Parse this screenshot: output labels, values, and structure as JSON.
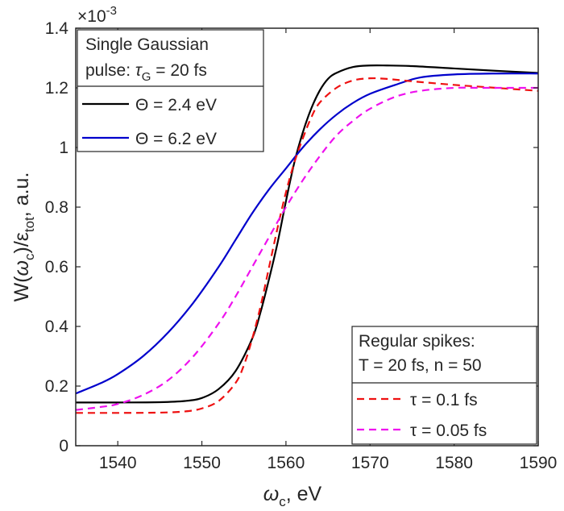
{
  "chart_data": {
    "type": "line",
    "xlim": [
      1535,
      1590
    ],
    "ylim": [
      0,
      1.4
    ],
    "x_ticks": [
      1540,
      1550,
      1560,
      1570,
      1580,
      1590
    ],
    "y_ticks": [
      0,
      0.2,
      0.4,
      0.6,
      0.8,
      1,
      1.2,
      1.4
    ],
    "x_tick_labels": [
      "1540",
      "1550",
      "1560",
      "1570",
      "1580",
      "1590"
    ],
    "y_tick_labels": [
      "0",
      "0.2",
      "0.4",
      "0.6",
      "0.8",
      "1",
      "1.2",
      "1.4"
    ],
    "exponent_label": "×10",
    "exponent_power": "-3",
    "xlabel": {
      "main": "ω",
      "sub": "c",
      "rest": ", eV"
    },
    "ylabel": {
      "p1": "W(",
      "omega": "ω",
      "sub_c": "c",
      "p2": ")/ε",
      "sub_tot": "tot",
      "p3": ", a.u."
    },
    "grid": false,
    "legend_top_left": {
      "title_line1": "Single Gaussian",
      "title_line2_prefix": "pulse: ",
      "title_line2_tau": "τ",
      "title_line2_sub": "G",
      "title_line2_suffix": " = 20 fs",
      "entries": [
        {
          "series_index": 0,
          "label": "Θ = 2.4 eV"
        },
        {
          "series_index": 1,
          "label": "Θ = 6.2 eV"
        }
      ]
    },
    "legend_bottom_right": {
      "title_line1": "Regular spikes:",
      "title_line2": "T = 20 fs, n = 50",
      "entries": [
        {
          "series_index": 2,
          "label": "τ = 0.1 fs"
        },
        {
          "series_index": 3,
          "label": "τ = 0.05 fs"
        }
      ]
    },
    "series": [
      {
        "color": "#000000",
        "dash": "solid",
        "x": [
          1535,
          1540,
          1545,
          1548,
          1550,
          1552,
          1554,
          1556,
          1557,
          1558,
          1559,
          1560,
          1561,
          1562,
          1563,
          1564,
          1565,
          1566,
          1568,
          1570,
          1572,
          1575,
          1580,
          1585,
          1590
        ],
        "y": [
          0.145,
          0.145,
          0.146,
          0.15,
          0.16,
          0.19,
          0.25,
          0.36,
          0.45,
          0.56,
          0.68,
          0.82,
          0.95,
          1.05,
          1.13,
          1.19,
          1.23,
          1.25,
          1.27,
          1.275,
          1.275,
          1.273,
          1.265,
          1.257,
          1.25
        ]
      },
      {
        "color": "#0000cc",
        "dash": "solid",
        "x": [
          1535,
          1538,
          1540,
          1543,
          1546,
          1549,
          1552,
          1554,
          1556,
          1558,
          1560,
          1562,
          1564,
          1566,
          1568,
          1570,
          1573,
          1576,
          1580,
          1585,
          1590
        ],
        "y": [
          0.175,
          0.21,
          0.24,
          0.3,
          0.38,
          0.48,
          0.6,
          0.69,
          0.78,
          0.86,
          0.93,
          1.0,
          1.06,
          1.11,
          1.15,
          1.18,
          1.21,
          1.235,
          1.245,
          1.248,
          1.248
        ]
      },
      {
        "color": "#ee1111",
        "dash": "dashed",
        "x": [
          1535,
          1540,
          1545,
          1548,
          1550,
          1552,
          1554,
          1555,
          1556,
          1557,
          1558,
          1559,
          1560,
          1561,
          1562,
          1563,
          1564,
          1566,
          1568,
          1570,
          1572,
          1575,
          1580,
          1585,
          1590
        ],
        "y": [
          0.11,
          0.11,
          0.111,
          0.115,
          0.125,
          0.15,
          0.21,
          0.27,
          0.36,
          0.47,
          0.6,
          0.73,
          0.85,
          0.95,
          1.03,
          1.1,
          1.15,
          1.2,
          1.225,
          1.232,
          1.23,
          1.222,
          1.21,
          1.2,
          1.19
        ]
      },
      {
        "color": "#ee11ee",
        "dash": "dashed",
        "x": [
          1535,
          1538,
          1540,
          1543,
          1546,
          1549,
          1552,
          1554,
          1556,
          1558,
          1560,
          1562,
          1564,
          1566,
          1568,
          1570,
          1573,
          1576,
          1580,
          1583,
          1586,
          1590
        ],
        "y": [
          0.12,
          0.13,
          0.14,
          0.17,
          0.22,
          0.3,
          0.41,
          0.5,
          0.6,
          0.7,
          0.8,
          0.89,
          0.97,
          1.04,
          1.09,
          1.13,
          1.17,
          1.19,
          1.2,
          1.2,
          1.2,
          1.2
        ]
      }
    ]
  }
}
